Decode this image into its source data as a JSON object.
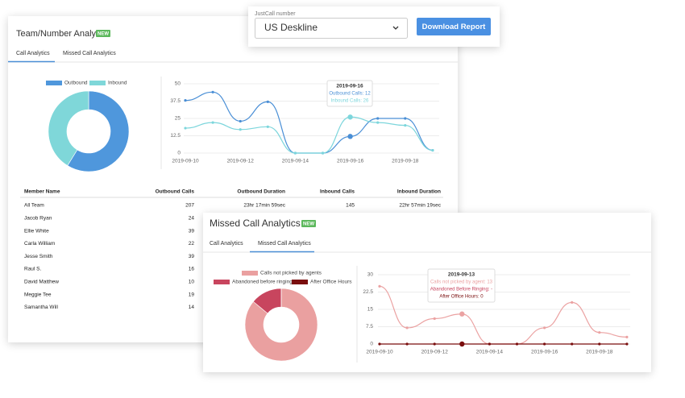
{
  "top_bar": {
    "label": "JustCall number",
    "selected": "US Deskline",
    "button": "Download Report"
  },
  "team_card": {
    "title": "Team/Number Analytics",
    "badge": "NEW",
    "tabs": [
      "Call Analytics",
      "Missed Call Analytics"
    ],
    "table": {
      "header": [
        "Member Name",
        "Outbound Calls",
        "Outbound Duration",
        "Inbound Calls",
        "Inbound Duration"
      ],
      "rows": [
        [
          "All Team",
          "207",
          "23hr 17min 59sec",
          "145",
          "22hr 57min 19sec"
        ],
        [
          "Jacob Ryan",
          "24"
        ],
        [
          "Ellie White",
          "39"
        ],
        [
          "Carla William",
          "22"
        ],
        [
          "Jesse Smith",
          "39"
        ],
        [
          "Raul S.",
          "16"
        ],
        [
          "David Matthew",
          "10"
        ],
        [
          "Meggie Tee",
          "19"
        ],
        [
          "Samantha Will",
          "14"
        ]
      ]
    }
  },
  "missed_card": {
    "title": "Missed Call Analytics",
    "badge": "NEW",
    "tabs": [
      "Call Analytics",
      "Missed Call Analytics"
    ]
  },
  "chart_data": [
    {
      "type": "pie",
      "donut": true,
      "categories": [
        "Outbound",
        "Inbound"
      ],
      "values": [
        207,
        145
      ],
      "colors": [
        "#4f97dc",
        "#7fd7d9"
      ]
    },
    {
      "type": "line",
      "categories": [
        "2019-09-10",
        null,
        "2019-09-12",
        null,
        "2019-09-14",
        null,
        "2019-09-16",
        null,
        "2019-09-18",
        null
      ],
      "ylim": [
        0,
        50
      ],
      "yticks": [
        0,
        12.5,
        25,
        37.5,
        50
      ],
      "grid": true,
      "hover": 6,
      "series": [
        {
          "color": "#4a8fd6",
          "values": [
            38,
            44,
            23,
            37,
            0,
            0,
            12,
            25,
            25,
            2
          ]
        },
        {
          "color": "#7dd6dc",
          "values": [
            18,
            22,
            17,
            19,
            0,
            0,
            26,
            22,
            20,
            2
          ]
        }
      ],
      "tooltip": {
        "title": "2019-09-16",
        "lines": [
          "Outbound Calls: 12",
          "Inbound Calls: 26"
        ]
      }
    },
    {
      "type": "pie",
      "donut": true,
      "categories": [
        "Calls not picked by agents",
        "Abandoned before ringing",
        "After Office Hours"
      ],
      "values": [
        86,
        14,
        0
      ],
      "colors": [
        "#eaa0a0",
        "#c8455e",
        "#7a0e0e"
      ]
    },
    {
      "type": "line",
      "categories": [
        "2019-09-10",
        null,
        "2019-09-12",
        null,
        "2019-09-14",
        null,
        "2019-09-16",
        null,
        "2019-09-18",
        null
      ],
      "ylim": [
        0,
        30
      ],
      "yticks": [
        0,
        7.5,
        15,
        22.5,
        30
      ],
      "grid": true,
      "hover": 3,
      "series": [
        {
          "color": "#eba2a2",
          "values": [
            25,
            7,
            11,
            13,
            0,
            0,
            7,
            18,
            5,
            3
          ]
        },
        {
          "color": "#c8455e",
          "values": [
            null,
            null,
            null,
            null,
            null,
            null,
            null,
            null,
            null,
            null
          ]
        },
        {
          "color": "#7a0e0e",
          "values": [
            0,
            0,
            0,
            0,
            0,
            0,
            0,
            0,
            0,
            0
          ]
        }
      ],
      "tooltip": {
        "title": "2019-09-13",
        "lines": [
          "Calls not picked by agent: 13",
          "Abandoned Before Ringing: -",
          "After Office Hours: 0"
        ]
      }
    }
  ]
}
